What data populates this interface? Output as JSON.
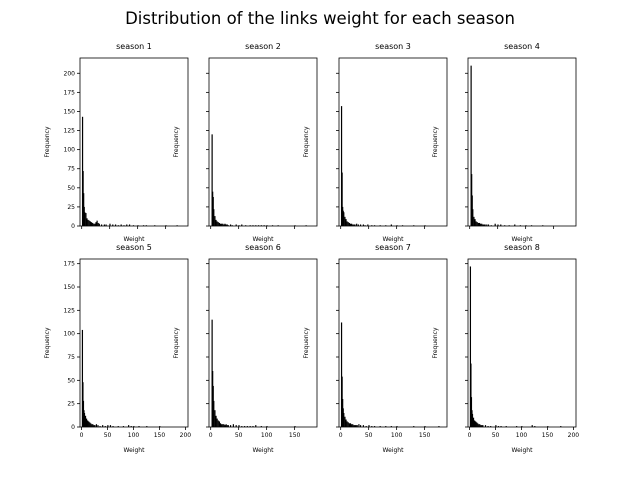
{
  "figure": {
    "suptitle": "Distribution of the links weight for each season"
  },
  "chart_data": [
    {
      "type": "bar",
      "title": "season 1",
      "xlabel": "Weight",
      "ylabel": "Frequency",
      "xlim": [
        -3,
        190
      ],
      "ylim": [
        0,
        220
      ],
      "sharey_row": 0,
      "xticks": [
        0,
        50,
        100,
        150
      ],
      "yticks": [
        0,
        25,
        50,
        75,
        100,
        125,
        150,
        175,
        200
      ],
      "bins": [
        [
          1,
          143
        ],
        [
          2,
          72
        ],
        [
          3,
          43
        ],
        [
          4,
          25
        ],
        [
          5,
          18
        ],
        [
          7,
          17
        ],
        [
          9,
          10
        ],
        [
          11,
          8
        ],
        [
          13,
          7
        ],
        [
          15,
          6
        ],
        [
          17,
          5
        ],
        [
          19,
          4
        ],
        [
          21,
          3
        ],
        [
          23,
          3
        ],
        [
          25,
          5
        ],
        [
          27,
          7
        ],
        [
          29,
          4
        ],
        [
          31,
          3
        ],
        [
          35,
          2
        ],
        [
          40,
          2
        ],
        [
          43,
          2
        ],
        [
          50,
          3
        ],
        [
          55,
          2
        ],
        [
          60,
          2
        ],
        [
          65,
          1
        ],
        [
          70,
          2
        ],
        [
          75,
          1
        ],
        [
          80,
          2
        ],
        [
          85,
          2
        ],
        [
          92,
          1
        ],
        [
          100,
          1
        ],
        [
          110,
          1
        ],
        [
          115,
          1
        ],
        [
          130,
          1
        ],
        [
          150,
          1
        ],
        [
          170,
          1
        ]
      ]
    },
    {
      "type": "bar",
      "title": "season 2",
      "xlabel": "Weight",
      "ylabel": "Frequency",
      "xlim": [
        -3,
        190
      ],
      "ylim": [
        0,
        220
      ],
      "sharey_row": 0,
      "xticks": [
        0,
        50,
        100,
        150
      ],
      "yticks": [
        0,
        25,
        50,
        75,
        100,
        125,
        150,
        175,
        200
      ],
      "bins": [
        [
          2,
          120
        ],
        [
          3,
          45
        ],
        [
          4,
          38
        ],
        [
          5,
          22
        ],
        [
          7,
          13
        ],
        [
          9,
          8
        ],
        [
          11,
          6
        ],
        [
          13,
          5
        ],
        [
          15,
          4
        ],
        [
          17,
          3
        ],
        [
          19,
          3
        ],
        [
          21,
          3
        ],
        [
          23,
          2
        ],
        [
          25,
          3
        ],
        [
          27,
          2
        ],
        [
          29,
          2
        ],
        [
          31,
          1
        ],
        [
          35,
          2
        ],
        [
          38,
          1
        ],
        [
          45,
          2
        ],
        [
          50,
          1
        ],
        [
          55,
          2
        ],
        [
          62,
          1
        ],
        [
          70,
          1
        ],
        [
          75,
          1
        ],
        [
          80,
          1
        ],
        [
          85,
          1
        ],
        [
          90,
          1
        ],
        [
          95,
          1
        ],
        [
          100,
          1
        ],
        [
          110,
          1
        ],
        [
          120,
          1
        ],
        [
          150,
          1
        ],
        [
          170,
          1
        ]
      ]
    },
    {
      "type": "bar",
      "title": "season 3",
      "xlabel": "Weight",
      "ylabel": "Frequency",
      "xlim": [
        -3,
        190
      ],
      "ylim": [
        0,
        220
      ],
      "sharey_row": 0,
      "xticks": [
        0,
        50,
        100,
        150
      ],
      "yticks": [
        0,
        25,
        50,
        75,
        100,
        125,
        150,
        175,
        200
      ],
      "bins": [
        [
          1,
          157
        ],
        [
          2,
          70
        ],
        [
          3,
          25
        ],
        [
          4,
          20
        ],
        [
          5,
          18
        ],
        [
          7,
          12
        ],
        [
          9,
          9
        ],
        [
          11,
          6
        ],
        [
          13,
          5
        ],
        [
          15,
          4
        ],
        [
          17,
          3
        ],
        [
          19,
          3
        ],
        [
          21,
          2
        ],
        [
          23,
          2
        ],
        [
          25,
          2
        ],
        [
          28,
          3
        ],
        [
          31,
          2
        ],
        [
          35,
          2
        ],
        [
          40,
          2
        ],
        [
          43,
          1
        ],
        [
          48,
          2
        ],
        [
          55,
          1
        ],
        [
          60,
          1
        ],
        [
          70,
          1
        ],
        [
          80,
          1
        ],
        [
          90,
          2
        ],
        [
          100,
          1
        ],
        [
          110,
          1
        ],
        [
          130,
          1
        ],
        [
          150,
          1
        ]
      ]
    },
    {
      "type": "bar",
      "title": "season 4",
      "xlabel": "Weight",
      "ylabel": "Frequency",
      "xlim": [
        -3,
        190
      ],
      "ylim": [
        0,
        220
      ],
      "sharey_row": 0,
      "xticks": [
        0,
        50,
        100,
        150
      ],
      "yticks": [
        0,
        25,
        50,
        75,
        100,
        125,
        150,
        175,
        200
      ],
      "bins": [
        [
          2,
          210
        ],
        [
          3,
          68
        ],
        [
          4,
          40
        ],
        [
          5,
          22
        ],
        [
          7,
          12
        ],
        [
          9,
          9
        ],
        [
          11,
          6
        ],
        [
          13,
          5
        ],
        [
          15,
          4
        ],
        [
          17,
          4
        ],
        [
          19,
          3
        ],
        [
          21,
          3
        ],
        [
          23,
          2
        ],
        [
          25,
          2
        ],
        [
          27,
          2
        ],
        [
          30,
          2
        ],
        [
          33,
          2
        ],
        [
          38,
          1
        ],
        [
          45,
          3
        ],
        [
          50,
          2
        ],
        [
          55,
          2
        ],
        [
          62,
          1
        ],
        [
          70,
          1
        ],
        [
          80,
          2
        ],
        [
          90,
          1
        ],
        [
          100,
          1
        ],
        [
          110,
          1
        ],
        [
          130,
          1
        ]
      ]
    },
    {
      "type": "bar",
      "title": "season 5",
      "xlabel": "Weight",
      "ylabel": "Frequency",
      "xlim": [
        -3,
        205
      ],
      "ylim": [
        0,
        180
      ],
      "sharey_row": 1,
      "xticks": [
        0,
        50,
        100,
        150,
        200
      ],
      "yticks": [
        0,
        25,
        50,
        75,
        100,
        125,
        150,
        175
      ],
      "bins": [
        [
          1,
          104
        ],
        [
          2,
          48
        ],
        [
          3,
          28
        ],
        [
          4,
          18
        ],
        [
          5,
          15
        ],
        [
          7,
          12
        ],
        [
          9,
          9
        ],
        [
          11,
          7
        ],
        [
          13,
          6
        ],
        [
          15,
          5
        ],
        [
          17,
          4
        ],
        [
          19,
          3
        ],
        [
          21,
          3
        ],
        [
          23,
          2
        ],
        [
          25,
          2
        ],
        [
          28,
          3
        ],
        [
          31,
          2
        ],
        [
          35,
          1
        ],
        [
          40,
          2
        ],
        [
          45,
          1
        ],
        [
          50,
          2
        ],
        [
          55,
          2
        ],
        [
          60,
          1
        ],
        [
          70,
          1
        ],
        [
          80,
          1
        ],
        [
          90,
          2
        ],
        [
          95,
          1
        ],
        [
          100,
          1
        ],
        [
          110,
          1
        ],
        [
          125,
          1
        ],
        [
          150,
          1
        ]
      ]
    },
    {
      "type": "bar",
      "title": "season 6",
      "xlabel": "Weight",
      "ylabel": "Frequency",
      "xlim": [
        -3,
        190
      ],
      "ylim": [
        0,
        180
      ],
      "sharey_row": 1,
      "xticks": [
        0,
        50,
        100,
        150
      ],
      "yticks": [
        0,
        25,
        50,
        75,
        100,
        125,
        150,
        175
      ],
      "bins": [
        [
          2,
          115
        ],
        [
          3,
          60
        ],
        [
          4,
          44
        ],
        [
          5,
          28
        ],
        [
          7,
          18
        ],
        [
          9,
          12
        ],
        [
          11,
          9
        ],
        [
          13,
          7
        ],
        [
          15,
          6
        ],
        [
          17,
          4
        ],
        [
          19,
          3
        ],
        [
          21,
          3
        ],
        [
          23,
          3
        ],
        [
          25,
          2
        ],
        [
          27,
          3
        ],
        [
          29,
          2
        ],
        [
          31,
          2
        ],
        [
          35,
          2
        ],
        [
          40,
          3
        ],
        [
          45,
          2
        ],
        [
          50,
          2
        ],
        [
          55,
          1
        ],
        [
          60,
          1
        ],
        [
          65,
          1
        ],
        [
          70,
          1
        ],
        [
          75,
          1
        ],
        [
          80,
          2
        ],
        [
          90,
          1
        ],
        [
          100,
          1
        ],
        [
          150,
          1
        ]
      ]
    },
    {
      "type": "bar",
      "title": "season 7",
      "xlabel": "Weight",
      "ylabel": "Frequency",
      "xlim": [
        -3,
        190
      ],
      "ylim": [
        0,
        180
      ],
      "sharey_row": 1,
      "xticks": [
        0,
        50,
        100,
        150
      ],
      "yticks": [
        0,
        25,
        50,
        75,
        100,
        125,
        150,
        175
      ],
      "bins": [
        [
          1,
          112
        ],
        [
          2,
          54
        ],
        [
          3,
          30
        ],
        [
          4,
          20
        ],
        [
          5,
          15
        ],
        [
          7,
          11
        ],
        [
          9,
          8
        ],
        [
          11,
          6
        ],
        [
          13,
          5
        ],
        [
          15,
          4
        ],
        [
          17,
          4
        ],
        [
          19,
          3
        ],
        [
          21,
          3
        ],
        [
          23,
          2
        ],
        [
          25,
          2
        ],
        [
          27,
          2
        ],
        [
          29,
          2
        ],
        [
          32,
          3
        ],
        [
          35,
          2
        ],
        [
          40,
          2
        ],
        [
          45,
          1
        ],
        [
          50,
          2
        ],
        [
          55,
          1
        ],
        [
          60,
          1
        ],
        [
          70,
          1
        ],
        [
          80,
          1
        ],
        [
          90,
          1
        ],
        [
          100,
          1
        ],
        [
          130,
          1
        ],
        [
          150,
          1
        ],
        [
          175,
          1
        ]
      ]
    },
    {
      "type": "bar",
      "title": "season 8",
      "xlabel": "Weight",
      "ylabel": "Frequency",
      "xlim": [
        -3,
        205
      ],
      "ylim": [
        0,
        180
      ],
      "sharey_row": 1,
      "xticks": [
        0,
        50,
        100,
        150,
        200
      ],
      "yticks": [
        0,
        25,
        50,
        75,
        100,
        125,
        150,
        175
      ],
      "bins": [
        [
          1,
          172
        ],
        [
          2,
          68
        ],
        [
          3,
          32
        ],
        [
          4,
          18
        ],
        [
          5,
          14
        ],
        [
          7,
          10
        ],
        [
          9,
          7
        ],
        [
          11,
          6
        ],
        [
          13,
          5
        ],
        [
          15,
          4
        ],
        [
          17,
          3
        ],
        [
          19,
          3
        ],
        [
          21,
          2
        ],
        [
          23,
          2
        ],
        [
          25,
          2
        ],
        [
          30,
          2
        ],
        [
          35,
          1
        ],
        [
          40,
          1
        ],
        [
          50,
          2
        ],
        [
          55,
          1
        ],
        [
          60,
          1
        ],
        [
          70,
          1
        ],
        [
          90,
          1
        ],
        [
          100,
          1
        ],
        [
          120,
          2
        ],
        [
          125,
          1
        ],
        [
          150,
          1
        ],
        [
          175,
          1
        ]
      ]
    }
  ]
}
